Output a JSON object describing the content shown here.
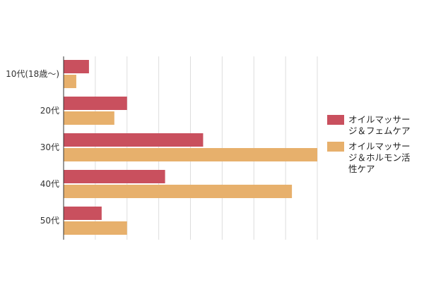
{
  "chart_data": {
    "type": "bar",
    "orientation": "horizontal",
    "categories": [
      "10代(18歳〜)",
      "20代",
      "30代",
      "40代",
      "50代"
    ],
    "series": [
      {
        "name": "オイルマッサージ＆フェムケア",
        "color": "#c9505e",
        "values": [
          2,
          5,
          11,
          8,
          3
        ]
      },
      {
        "name": "オイルマッサージ＆ホルモン活性ケア",
        "color": "#e7b06c",
        "values": [
          1,
          4,
          20,
          18,
          5
        ]
      }
    ],
    "xlim": [
      0,
      20
    ],
    "grid": true,
    "legend_position": "right"
  }
}
